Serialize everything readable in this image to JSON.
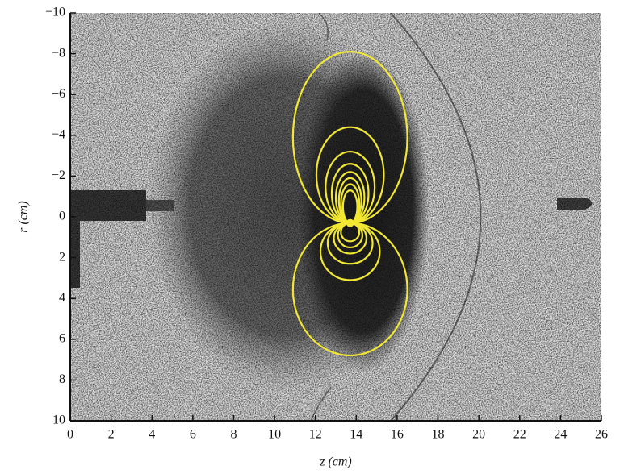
{
  "chart_data": {
    "type": "contour",
    "x_label": "z (cm)",
    "y_label": "r (cm)",
    "xlim": [
      0,
      26
    ],
    "xticks": [
      0,
      2,
      4,
      6,
      8,
      10,
      12,
      14,
      16,
      18,
      20,
      22,
      24,
      26
    ],
    "ylim": [
      -10,
      10
    ],
    "yticks": [
      {
        "value": -10,
        "label": "−10"
      },
      {
        "value": -8,
        "label": "−8"
      },
      {
        "value": -6,
        "label": "−6"
      },
      {
        "value": -4,
        "label": "−4"
      },
      {
        "value": -2,
        "label": "−2"
      },
      0,
      2,
      4,
      6,
      8,
      10
    ],
    "y_inverted": true,
    "color": "#f2e833",
    "center": [
      13.7,
      0.3
    ],
    "loops": [
      {
        "r": -8.1,
        "width": 5.6
      },
      {
        "r": -4.4,
        "width": 3.3
      },
      {
        "r": -3.2,
        "width": 2.4
      },
      {
        "r": -2.6,
        "width": 1.8
      },
      {
        "r": -2.2,
        "width": 1.4
      },
      {
        "r": -1.9,
        "width": 1.1
      },
      {
        "r": -1.6,
        "width": 0.9
      },
      {
        "r": -1.3,
        "width": 0.7
      },
      {
        "r": 6.8,
        "width": 5.6
      },
      {
        "r": 3.1,
        "width": 2.9
      },
      {
        "r": 2.3,
        "width": 2.2
      },
      {
        "r": 1.8,
        "width": 1.6
      },
      {
        "r": 1.5,
        "width": 1.2
      },
      {
        "r": 1.2,
        "width": 0.9
      }
    ]
  }
}
